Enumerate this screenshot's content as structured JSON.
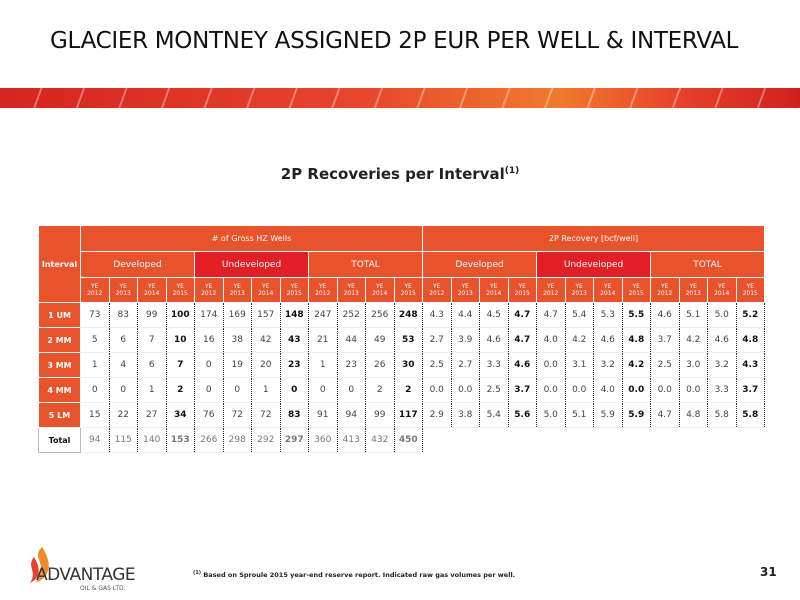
{
  "header": {
    "title": "GLACIER MONTNEY ASSIGNED 2P EUR PER WELL & INTERVAL",
    "page_number": "31"
  },
  "subtitle": {
    "text": "2P Recoveries per Interval",
    "sup": "(1)"
  },
  "table": {
    "corner": "Interval",
    "groups": [
      "# of Gross HZ Wells",
      "2P Recovery [bcf/well]"
    ],
    "subgroups": [
      "Developed",
      "Undeveloped",
      "TOTAL",
      "Developed",
      "Undeveloped",
      "TOTAL"
    ],
    "years": [
      "YE 2012",
      "YE 2013",
      "YE 2014",
      "YE 2015"
    ],
    "rows": [
      {
        "label": "1 UM",
        "cells": [
          "73",
          "83",
          "99",
          "100",
          "174",
          "169",
          "157",
          "148",
          "247",
          "252",
          "256",
          "248",
          "4.3",
          "4.4",
          "4.5",
          "4.7",
          "4.7",
          "5.4",
          "5.3",
          "5.5",
          "4.6",
          "5.1",
          "5.0",
          "5.2"
        ]
      },
      {
        "label": "2 MM",
        "cells": [
          "5",
          "6",
          "7",
          "10",
          "16",
          "38",
          "42",
          "43",
          "21",
          "44",
          "49",
          "53",
          "2.7",
          "3.9",
          "4.6",
          "4.7",
          "4.0",
          "4.2",
          "4.6",
          "4.8",
          "3.7",
          "4.2",
          "4.6",
          "4.8"
        ]
      },
      {
        "label": "3 MM",
        "cells": [
          "1",
          "4",
          "6",
          "7",
          "0",
          "19",
          "20",
          "23",
          "1",
          "23",
          "26",
          "30",
          "2.5",
          "2.7",
          "3.3",
          "4.6",
          "0.0",
          "3.1",
          "3.2",
          "4.2",
          "2.5",
          "3.0",
          "3.2",
          "4.3"
        ]
      },
      {
        "label": "4 MM",
        "cells": [
          "0",
          "0",
          "1",
          "2",
          "0",
          "0",
          "1",
          "0",
          "0",
          "0",
          "2",
          "2",
          "0.0",
          "0.0",
          "2.5",
          "3.7",
          "0.0",
          "0.0",
          "4.0",
          "0.0",
          "0.0",
          "0.0",
          "3.3",
          "3.7"
        ]
      },
      {
        "label": "5 LM",
        "cells": [
          "15",
          "22",
          "27",
          "34",
          "76",
          "72",
          "72",
          "83",
          "91",
          "94",
          "99",
          "117",
          "2.9",
          "3.8",
          "5.4",
          "5.6",
          "5.0",
          "5.1",
          "5.9",
          "5.9",
          "4.7",
          "4.8",
          "5.8",
          "5.8"
        ]
      },
      {
        "label": "Total",
        "cells": [
          "94",
          "115",
          "140",
          "153",
          "266",
          "298",
          "292",
          "297",
          "360",
          "413",
          "432",
          "450"
        ]
      }
    ]
  },
  "footnote": {
    "marker": "(1)",
    "text": "Based on Sproule 2015 year-end reserve report. Indicated raw gas volumes per well."
  },
  "logo": {
    "name": "ADVANTAGE",
    "sub": "OIL & GAS LTD."
  }
}
